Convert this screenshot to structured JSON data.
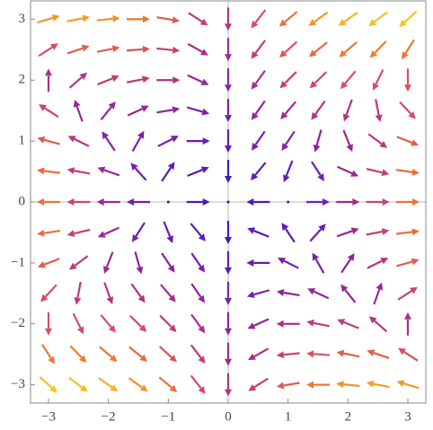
{
  "chart_data": {
    "type": "vector",
    "x": [
      -3,
      -2.5,
      -2,
      -1.5,
      -1,
      -0.5,
      0,
      0.5,
      1,
      1.5,
      2,
      2.5,
      3
    ],
    "y": [
      3,
      2.5,
      2,
      1.5,
      1,
      0.5,
      0,
      -0.5,
      -1,
      -1.5,
      -2,
      -2.5,
      -3
    ],
    "u": [
      [
        30,
        31.875,
        30,
        25.125,
        18,
        9.375,
        0,
        -9.375,
        -18,
        -25.125,
        -30,
        -31.875,
        -30
      ],
      [
        13.5,
        18.125,
        19,
        16.875,
        12.5,
        6.625,
        0,
        -6.625,
        -12.5,
        -16.875,
        -19,
        -18.125,
        -13.5
      ],
      [
        0,
        6.875,
        10,
        10.125,
        8,
        4.375,
        0,
        -4.375,
        -8,
        -10.125,
        -10,
        -6.875,
        0
      ],
      [
        -10.5,
        -1.875,
        3,
        4.875,
        4.5,
        2.625,
        0,
        -2.625,
        -4.5,
        -4.875,
        -3,
        1.875,
        10.5
      ],
      [
        -18,
        -8.125,
        -2,
        1.125,
        2,
        1.375,
        0,
        -1.375,
        -2,
        -1.125,
        2,
        8.125,
        18
      ],
      [
        -22.5,
        -11.875,
        -5,
        -1.125,
        0.5,
        0.625,
        0,
        -0.625,
        -0.5,
        1.125,
        5,
        11.875,
        22.5
      ],
      [
        -24,
        -13.125,
        -6,
        -1.875,
        0,
        0.375,
        0,
        -0.375,
        0,
        1.875,
        6,
        13.125,
        24
      ],
      [
        -22.5,
        -11.875,
        -5,
        -1.125,
        0.5,
        0.625,
        0,
        -0.625,
        -0.5,
        1.125,
        5,
        11.875,
        22.5
      ],
      [
        -18,
        -8.125,
        -2,
        1.125,
        2,
        1.375,
        0,
        -1.375,
        -2,
        -1.125,
        2,
        8.125,
        18
      ],
      [
        -10.5,
        -1.875,
        3,
        4.875,
        4.5,
        2.625,
        0,
        -2.625,
        -4.5,
        -4.875,
        -3,
        1.875,
        10.5
      ],
      [
        0,
        6.875,
        10,
        10.125,
        8,
        4.375,
        0,
        -4.375,
        -8,
        -10.125,
        -10,
        -6.875,
        0
      ],
      [
        13.5,
        18.125,
        19,
        16.875,
        12.5,
        6.625,
        0,
        -6.625,
        -12.5,
        -16.875,
        -19,
        -18.125,
        -13.5
      ],
      [
        30,
        31.875,
        30,
        25.125,
        18,
        9.375,
        0,
        -9.375,
        -18,
        -25.125,
        -30,
        -31.875,
        -30
      ]
    ],
    "v": [
      [
        9,
        6,
        3,
        0,
        -3,
        -6,
        -9,
        -12,
        -15,
        -18,
        -21,
        -24,
        -27
      ],
      [
        8.75,
        6.25,
        3.75,
        1.25,
        -1.25,
        -3.75,
        -6.25,
        -8.75,
        -11.25,
        -13.75,
        -16.25,
        -18.75,
        -21.25
      ],
      [
        8,
        6,
        4,
        2,
        0,
        -2,
        -4,
        -6,
        -8,
        -10,
        -12,
        -14,
        -16
      ],
      [
        6.75,
        5.25,
        3.75,
        2.25,
        0.75,
        -0.75,
        -2.25,
        -3.75,
        -5.25,
        -6.75,
        -8.25,
        -9.75,
        -11.25
      ],
      [
        5,
        4,
        3,
        2,
        1,
        0,
        -1,
        -2,
        -3,
        -4,
        -5,
        -6,
        -7
      ],
      [
        2.75,
        2.25,
        1.75,
        1.25,
        0.75,
        0.25,
        -0.25,
        -0.75,
        -1.25,
        -1.75,
        -2.25,
        -2.75,
        -3.25
      ],
      [
        0,
        0,
        0,
        0,
        0,
        0,
        0,
        0,
        0,
        0,
        0,
        0,
        0
      ],
      [
        -3.25,
        -2.75,
        -2.25,
        -1.75,
        -1.25,
        -0.75,
        -0.25,
        0.25,
        0.75,
        1.25,
        1.75,
        2.25,
        2.75
      ],
      [
        -7,
        -6,
        -5,
        -4,
        -3,
        -2,
        -1,
        0,
        1,
        2,
        3,
        4,
        5
      ],
      [
        -11.25,
        -9.75,
        -8.25,
        -6.75,
        -5.25,
        -3.75,
        -2.25,
        -0.75,
        0.75,
        2.25,
        3.75,
        5.25,
        6.75
      ],
      [
        -16,
        -14,
        -12,
        -10,
        -8,
        -6,
        -4,
        -2,
        0,
        2,
        4,
        6,
        8
      ],
      [
        -21.25,
        -18.75,
        -16.25,
        -13.75,
        -11.25,
        -8.75,
        -6.25,
        -3.75,
        -1.25,
        1.25,
        3.75,
        6.25,
        8.75
      ],
      [
        -27,
        -24,
        -21,
        -18,
        -15,
        -12,
        -9,
        -6,
        -3,
        0,
        3,
        6,
        9
      ]
    ],
    "colormap": [
      "#2b17c4",
      "#6a1fb0",
      "#a02a8e",
      "#d4476a",
      "#f07a2a",
      "#f7c21c"
    ],
    "xlim": [
      -3.3,
      3.3
    ],
    "ylim": [
      -3.3,
      3.3
    ],
    "xticks": [
      {
        "value": -3,
        "label": "−3"
      },
      {
        "value": -2,
        "label": "−2"
      },
      {
        "value": -1,
        "label": "−1"
      },
      0,
      1,
      2,
      3
    ],
    "yticks": [
      {
        "value": -3,
        "label": "−3"
      },
      {
        "value": -2,
        "label": "−2"
      },
      {
        "value": -1,
        "label": "−1"
      },
      0,
      1,
      2,
      3
    ]
  }
}
